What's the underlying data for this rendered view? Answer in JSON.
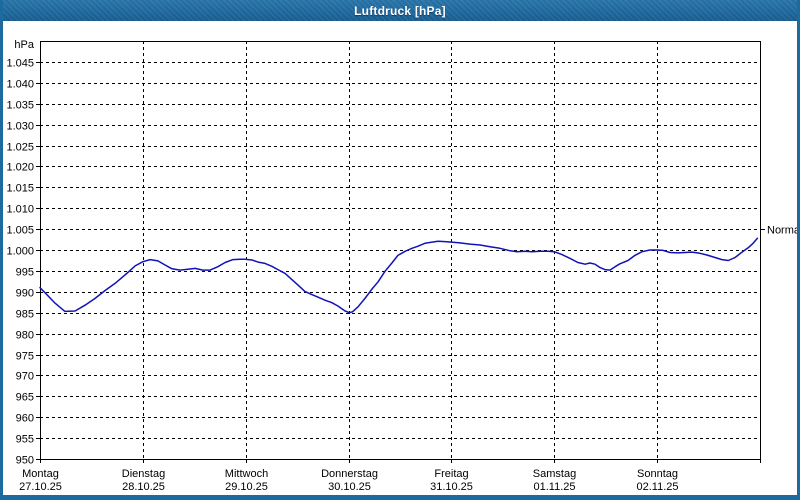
{
  "window": {
    "title": "Luftdruck [hPa]"
  },
  "colors": {
    "frame": "#1d6a9e",
    "titlebar_top": "#2b77ac",
    "titlebar_bottom": "#1a5f93",
    "title_text": "#ffffff",
    "curve": "#1212b8",
    "grid": "#000000",
    "axis": "#000000",
    "text": "#000000",
    "plot_bg": "#ffffff"
  },
  "chart_data": {
    "type": "line",
    "title": "Luftdruck [hPa]",
    "ylabel": "hPa",
    "unit_label": "hPa",
    "ylim": [
      950,
      1050
    ],
    "grid": "dashed",
    "y_ticks": [
      {
        "value": 950,
        "label": "950"
      },
      {
        "value": 955,
        "label": "955"
      },
      {
        "value": 960,
        "label": "960"
      },
      {
        "value": 965,
        "label": "965"
      },
      {
        "value": 970,
        "label": "970"
      },
      {
        "value": 975,
        "label": "975"
      },
      {
        "value": 980,
        "label": "980"
      },
      {
        "value": 985,
        "label": "985"
      },
      {
        "value": 990,
        "label": "990"
      },
      {
        "value": 995,
        "label": "995"
      },
      {
        "value": 1000,
        "label": "1.000"
      },
      {
        "value": 1005,
        "label": "1.005"
      },
      {
        "value": 1010,
        "label": "1.010"
      },
      {
        "value": 1015,
        "label": "1.015"
      },
      {
        "value": 1020,
        "label": "1.020"
      },
      {
        "value": 1025,
        "label": "1.025"
      },
      {
        "value": 1030,
        "label": "1.030"
      },
      {
        "value": 1035,
        "label": "1.035"
      },
      {
        "value": 1040,
        "label": "1.040"
      },
      {
        "value": 1045,
        "label": "1.045"
      }
    ],
    "x_hours_total": 168,
    "x_day_step_hours": 24,
    "x_days": [
      {
        "name": "Montag",
        "date": "27.10.25"
      },
      {
        "name": "Dienstag",
        "date": "28.10.25"
      },
      {
        "name": "Mittwoch",
        "date": "29.10.25"
      },
      {
        "name": "Donnerstag",
        "date": "30.10.25"
      },
      {
        "name": "Freitag",
        "date": "31.10.25"
      },
      {
        "name": "Samstag",
        "date": "01.11.25"
      },
      {
        "name": "Sonntag",
        "date": "02.11.25"
      }
    ],
    "normal_marker": {
      "label": "Normal",
      "value": 1005
    },
    "series": [
      {
        "name": "Luftdruck",
        "points": [
          [
            0,
            991
          ],
          [
            1.6,
            989.3
          ],
          [
            3.5,
            987.3
          ],
          [
            5.8,
            985.3
          ],
          [
            8.2,
            985.4
          ],
          [
            10.5,
            986.8
          ],
          [
            12.8,
            988.4
          ],
          [
            15.2,
            990.3
          ],
          [
            17.5,
            992
          ],
          [
            19.8,
            994
          ],
          [
            22.2,
            996.2
          ],
          [
            24,
            997.2
          ],
          [
            25.7,
            997.7
          ],
          [
            27.5,
            997.4
          ],
          [
            29.2,
            996.4
          ],
          [
            30.8,
            995.5
          ],
          [
            32.7,
            995.2
          ],
          [
            34.5,
            995.4
          ],
          [
            36.2,
            995.6
          ],
          [
            38,
            995.2
          ],
          [
            39.7,
            995.2
          ],
          [
            41.5,
            996
          ],
          [
            43.2,
            997
          ],
          [
            45,
            997.7
          ],
          [
            46.7,
            997.8
          ],
          [
            47.8,
            997.8
          ],
          [
            49.5,
            997.6
          ],
          [
            50.9,
            997.1
          ],
          [
            52.5,
            996.8
          ],
          [
            54.1,
            996.1
          ],
          [
            55.5,
            995.3
          ],
          [
            57.2,
            994.4
          ],
          [
            58.8,
            992.9
          ],
          [
            60.2,
            991.6
          ],
          [
            61.8,
            990.1
          ],
          [
            63.5,
            989.3
          ],
          [
            64.9,
            988.7
          ],
          [
            66.5,
            988
          ],
          [
            68.1,
            987.4
          ],
          [
            69.5,
            986.6
          ],
          [
            71.2,
            985.4
          ],
          [
            72.2,
            985
          ],
          [
            72.9,
            985.2
          ],
          [
            74.2,
            986.4
          ],
          [
            75.8,
            988.4
          ],
          [
            77.5,
            990.7
          ],
          [
            78.9,
            992.4
          ],
          [
            80.5,
            994.9
          ],
          [
            82.1,
            996.9
          ],
          [
            83.5,
            998.7
          ],
          [
            85.2,
            999.7
          ],
          [
            86.8,
            1000.4
          ],
          [
            88.2,
            1000.9
          ],
          [
            89.8,
            1001.6
          ],
          [
            91.5,
            1001.9
          ],
          [
            92.9,
            1002.1
          ],
          [
            94.5,
            1002
          ],
          [
            96,
            1001.9
          ],
          [
            98,
            1001.7
          ],
          [
            100.3,
            1001.4
          ],
          [
            102.7,
            1001.2
          ],
          [
            105,
            1000.8
          ],
          [
            107.3,
            1000.4
          ],
          [
            109.7,
            999.8
          ],
          [
            111.3,
            999.6
          ],
          [
            113.2,
            999.7
          ],
          [
            114.8,
            999.6
          ],
          [
            116.7,
            999.7
          ],
          [
            118.5,
            999.7
          ],
          [
            120,
            999.6
          ],
          [
            121.8,
            998.9
          ],
          [
            123.7,
            998
          ],
          [
            125.5,
            997
          ],
          [
            127.2,
            996.6
          ],
          [
            128.3,
            996.9
          ],
          [
            129.5,
            996.6
          ],
          [
            130.7,
            995.8
          ],
          [
            131.8,
            995.3
          ],
          [
            133,
            995.2
          ],
          [
            134.2,
            996
          ],
          [
            135.3,
            996.7
          ],
          [
            137.2,
            997.5
          ],
          [
            138.8,
            998.7
          ],
          [
            140.5,
            999.6
          ],
          [
            142.3,
            1000
          ],
          [
            144,
            1000
          ],
          [
            145.4,
            999.9
          ],
          [
            147,
            999.4
          ],
          [
            148.9,
            999.3
          ],
          [
            150.5,
            999.4
          ],
          [
            152.1,
            999.5
          ],
          [
            154,
            999.2
          ],
          [
            155.6,
            998.8
          ],
          [
            157.5,
            998.2
          ],
          [
            159.1,
            997.7
          ],
          [
            160.6,
            997.5
          ],
          [
            162.2,
            998.2
          ],
          [
            163.8,
            999.5
          ],
          [
            165.2,
            1000.5
          ],
          [
            166.4,
            1001.6
          ],
          [
            167.4,
            1002.8
          ]
        ]
      }
    ]
  }
}
